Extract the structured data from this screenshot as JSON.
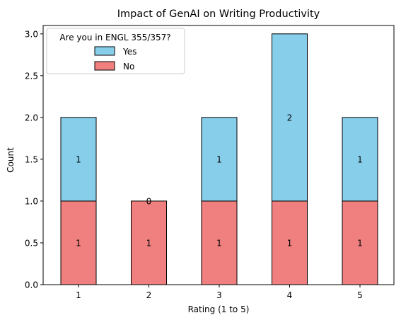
{
  "chart_data": {
    "type": "bar",
    "stacked": true,
    "title": "Impact of GenAI on Writing Productivity",
    "xlabel": "Rating (1 to 5)",
    "ylabel": "Count",
    "categories": [
      "1",
      "2",
      "3",
      "4",
      "5"
    ],
    "ylim": [
      0,
      3.1
    ],
    "yticks": [
      "0.0",
      "0.5",
      "1.0",
      "1.5",
      "2.0",
      "2.5",
      "3.0"
    ],
    "series": [
      {
        "name": "No",
        "values": [
          1,
          1,
          1,
          1,
          1
        ],
        "color": "#f08080",
        "labels": [
          "1",
          "1",
          "1",
          "1",
          "1"
        ]
      },
      {
        "name": "Yes",
        "values": [
          1,
          0,
          1,
          2,
          1
        ],
        "color": "#87ceeb",
        "labels": [
          "1",
          "0",
          "1",
          "2",
          "1"
        ]
      }
    ],
    "legend": {
      "title": "Are you in ENGL 355/357?",
      "placement": "top-left",
      "entries": [
        "Yes",
        "No"
      ]
    },
    "grid": false
  }
}
